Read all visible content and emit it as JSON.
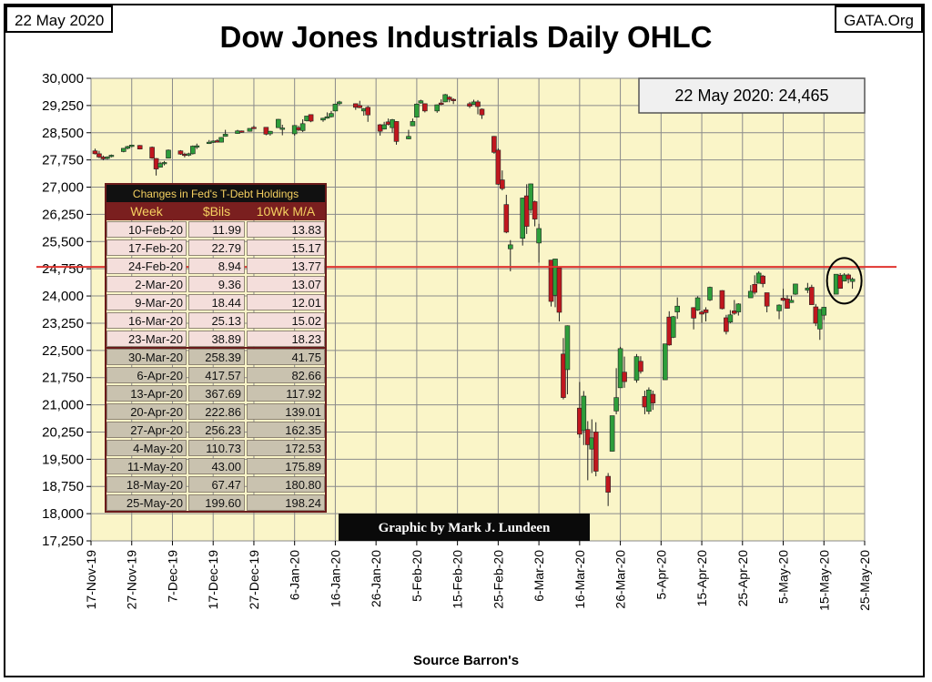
{
  "header": {
    "date_box": "22 May 2020",
    "site_box": "GATA.Org",
    "title": "Dow Jones Industrials Daily OHLC",
    "source": "Source Barron's"
  },
  "chart_data": {
    "type": "candlestick",
    "title": "Dow Jones Industrials Daily OHLC",
    "xlabel": "Source Barron's",
    "ylabel": "",
    "ylim": [
      17250,
      30000
    ],
    "y_ticks": [
      "30,000",
      "29,250",
      "28,500",
      "27,750",
      "27,000",
      "26,250",
      "25,500",
      "24,750",
      "24,000",
      "23,250",
      "22,500",
      "21,750",
      "21,000",
      "20,250",
      "19,500",
      "18,750",
      "18,000",
      "17,250"
    ],
    "x_ticks": [
      "17-Nov-19",
      "27-Nov-19",
      "7-Dec-19",
      "17-Dec-19",
      "27-Dec-19",
      "6-Jan-20",
      "16-Jan-20",
      "26-Jan-20",
      "5-Feb-20",
      "15-Feb-20",
      "25-Feb-20",
      "6-Mar-20",
      "16-Mar-20",
      "26-Mar-20",
      "5-Apr-20",
      "15-Apr-20",
      "25-Apr-20",
      "5-May-20",
      "15-May-20",
      "25-May-20"
    ],
    "x_start": "2019-11-17",
    "x_end": "2020-05-25",
    "grid": true,
    "annotation_label": "22 May 2020: 24,465",
    "reference_line": 24800,
    "credit": "Graphic by Mark J. Lundeen",
    "candles": [
      {
        "d": "2019-11-18",
        "o": 28000,
        "h": 28060,
        "l": 27900,
        "c": 27920
      },
      {
        "d": "2019-11-19",
        "o": 27920,
        "h": 28000,
        "l": 27800,
        "c": 27830
      },
      {
        "d": "2019-11-20",
        "o": 27830,
        "h": 27870,
        "l": 27740,
        "c": 27780
      },
      {
        "d": "2019-11-21",
        "o": 27790,
        "h": 27850,
        "l": 27760,
        "c": 27830
      },
      {
        "d": "2019-11-22",
        "o": 27850,
        "h": 27900,
        "l": 27820,
        "c": 27880
      },
      {
        "d": "2019-11-25",
        "o": 27980,
        "h": 28080,
        "l": 27960,
        "c": 28070
      },
      {
        "d": "2019-11-26",
        "o": 28070,
        "h": 28140,
        "l": 28040,
        "c": 28120
      },
      {
        "d": "2019-11-27",
        "o": 28120,
        "h": 28170,
        "l": 28100,
        "c": 28160
      },
      {
        "d": "2019-11-29",
        "o": 28150,
        "h": 28160,
        "l": 28040,
        "c": 28050
      },
      {
        "d": "2019-12-02",
        "o": 28100,
        "h": 28120,
        "l": 27780,
        "c": 27800
      },
      {
        "d": "2019-12-03",
        "o": 27790,
        "h": 27800,
        "l": 27320,
        "c": 27500
      },
      {
        "d": "2019-12-04",
        "o": 27550,
        "h": 27700,
        "l": 27540,
        "c": 27650
      },
      {
        "d": "2019-12-05",
        "o": 27650,
        "h": 27720,
        "l": 27600,
        "c": 27680
      },
      {
        "d": "2019-12-06",
        "o": 27800,
        "h": 28040,
        "l": 27790,
        "c": 28020
      },
      {
        "d": "2019-12-09",
        "o": 28000,
        "h": 28020,
        "l": 27890,
        "c": 27910
      },
      {
        "d": "2019-12-10",
        "o": 27910,
        "h": 27950,
        "l": 27820,
        "c": 27880
      },
      {
        "d": "2019-12-11",
        "o": 27880,
        "h": 27950,
        "l": 27850,
        "c": 27920
      },
      {
        "d": "2019-12-12",
        "o": 27920,
        "h": 28150,
        "l": 27900,
        "c": 28130
      },
      {
        "d": "2019-12-13",
        "o": 28130,
        "h": 28200,
        "l": 28050,
        "c": 28140
      },
      {
        "d": "2019-12-16",
        "o": 28200,
        "h": 28300,
        "l": 28190,
        "c": 28240
      },
      {
        "d": "2019-12-17",
        "o": 28240,
        "h": 28290,
        "l": 28220,
        "c": 28270
      },
      {
        "d": "2019-12-18",
        "o": 28280,
        "h": 28320,
        "l": 28230,
        "c": 28240
      },
      {
        "d": "2019-12-19",
        "o": 28240,
        "h": 28380,
        "l": 28230,
        "c": 28370
      },
      {
        "d": "2019-12-20",
        "o": 28400,
        "h": 28580,
        "l": 28390,
        "c": 28460
      },
      {
        "d": "2019-12-23",
        "o": 28480,
        "h": 28580,
        "l": 28470,
        "c": 28550
      },
      {
        "d": "2019-12-24",
        "o": 28550,
        "h": 28560,
        "l": 28500,
        "c": 28520
      },
      {
        "d": "2019-12-26",
        "o": 28540,
        "h": 28620,
        "l": 28530,
        "c": 28620
      },
      {
        "d": "2019-12-27",
        "o": 28650,
        "h": 28700,
        "l": 28620,
        "c": 28640
      },
      {
        "d": "2019-12-30",
        "o": 28650,
        "h": 28650,
        "l": 28430,
        "c": 28460
      },
      {
        "d": "2019-12-31",
        "o": 28470,
        "h": 28550,
        "l": 28420,
        "c": 28540
      },
      {
        "d": "2020-01-02",
        "o": 28640,
        "h": 28880,
        "l": 28630,
        "c": 28870
      },
      {
        "d": "2020-01-03",
        "o": 28630,
        "h": 28720,
        "l": 28430,
        "c": 28630
      },
      {
        "d": "2020-01-06",
        "o": 28470,
        "h": 28710,
        "l": 28420,
        "c": 28700
      },
      {
        "d": "2020-01-07",
        "o": 28640,
        "h": 28690,
        "l": 28540,
        "c": 28580
      },
      {
        "d": "2020-01-08",
        "o": 28560,
        "h": 28870,
        "l": 28520,
        "c": 28750
      },
      {
        "d": "2020-01-09",
        "o": 28830,
        "h": 28960,
        "l": 28810,
        "c": 28960
      },
      {
        "d": "2020-01-10",
        "o": 29000,
        "h": 29000,
        "l": 28790,
        "c": 28820
      },
      {
        "d": "2020-01-13",
        "o": 28850,
        "h": 28910,
        "l": 28800,
        "c": 28900
      },
      {
        "d": "2020-01-14",
        "o": 28900,
        "h": 29060,
        "l": 28890,
        "c": 28940
      },
      {
        "d": "2020-01-15",
        "o": 28940,
        "h": 29100,
        "l": 28920,
        "c": 29030
      },
      {
        "d": "2020-01-16",
        "o": 29100,
        "h": 29300,
        "l": 29090,
        "c": 29290
      },
      {
        "d": "2020-01-17",
        "o": 29300,
        "h": 29380,
        "l": 29260,
        "c": 29350
      },
      {
        "d": "2020-01-21",
        "o": 29300,
        "h": 29310,
        "l": 29130,
        "c": 29200
      },
      {
        "d": "2020-01-22",
        "o": 29250,
        "h": 29380,
        "l": 29180,
        "c": 29190
      },
      {
        "d": "2020-01-23",
        "o": 29100,
        "h": 29180,
        "l": 28970,
        "c": 29160
      },
      {
        "d": "2020-01-24",
        "o": 29200,
        "h": 29240,
        "l": 28800,
        "c": 28990
      },
      {
        "d": "2020-01-27",
        "o": 28720,
        "h": 28740,
        "l": 28420,
        "c": 28540
      },
      {
        "d": "2020-01-28",
        "o": 28600,
        "h": 28800,
        "l": 28590,
        "c": 28720
      },
      {
        "d": "2020-01-29",
        "o": 28800,
        "h": 28890,
        "l": 28700,
        "c": 28730
      },
      {
        "d": "2020-01-30",
        "o": 28640,
        "h": 28880,
        "l": 28500,
        "c": 28860
      },
      {
        "d": "2020-01-31",
        "o": 28810,
        "h": 28820,
        "l": 28170,
        "c": 28260
      },
      {
        "d": "2020-02-03",
        "o": 28330,
        "h": 28580,
        "l": 28320,
        "c": 28400
      },
      {
        "d": "2020-02-04",
        "o": 28690,
        "h": 28890,
        "l": 28680,
        "c": 28810
      },
      {
        "d": "2020-02-05",
        "o": 28930,
        "h": 29310,
        "l": 28920,
        "c": 29290
      },
      {
        "d": "2020-02-06",
        "o": 29320,
        "h": 29410,
        "l": 29300,
        "c": 29380
      },
      {
        "d": "2020-02-07",
        "o": 29300,
        "h": 29310,
        "l": 29060,
        "c": 29100
      },
      {
        "d": "2020-02-10",
        "o": 29100,
        "h": 29280,
        "l": 29050,
        "c": 29270
      },
      {
        "d": "2020-02-11",
        "o": 29320,
        "h": 29420,
        "l": 29260,
        "c": 29280
      },
      {
        "d": "2020-02-12",
        "o": 29350,
        "h": 29570,
        "l": 29340,
        "c": 29550
      },
      {
        "d": "2020-02-13",
        "o": 29480,
        "h": 29510,
        "l": 29340,
        "c": 29420
      },
      {
        "d": "2020-02-14",
        "o": 29420,
        "h": 29450,
        "l": 29290,
        "c": 29400
      },
      {
        "d": "2020-02-18",
        "o": 29300,
        "h": 29350,
        "l": 29180,
        "c": 29230
      },
      {
        "d": "2020-02-19",
        "o": 29280,
        "h": 29410,
        "l": 29270,
        "c": 29350
      },
      {
        "d": "2020-02-20",
        "o": 29350,
        "h": 29400,
        "l": 29010,
        "c": 29220
      },
      {
        "d": "2020-02-21",
        "o": 29150,
        "h": 29170,
        "l": 28880,
        "c": 28990
      },
      {
        "d": "2020-02-24",
        "o": 28400,
        "h": 28410,
        "l": 27920,
        "c": 27960
      },
      {
        "d": "2020-02-25",
        "o": 28020,
        "h": 28070,
        "l": 27060,
        "c": 27080
      },
      {
        "d": "2020-02-26",
        "o": 27200,
        "h": 27460,
        "l": 26910,
        "c": 26960
      },
      {
        "d": "2020-02-27",
        "o": 26520,
        "h": 26790,
        "l": 25730,
        "c": 25760
      },
      {
        "d": "2020-02-28",
        "o": 25300,
        "h": 25540,
        "l": 24680,
        "c": 25410
      },
      {
        "d": "2020-03-02",
        "o": 25590,
        "h": 26710,
        "l": 25390,
        "c": 26700
      },
      {
        "d": "2020-03-03",
        "o": 26760,
        "h": 27080,
        "l": 25710,
        "c": 25920
      },
      {
        "d": "2020-03-04",
        "o": 26380,
        "h": 27100,
        "l": 26280,
        "c": 27090
      },
      {
        "d": "2020-03-05",
        "o": 26600,
        "h": 26630,
        "l": 25920,
        "c": 26120
      },
      {
        "d": "2020-03-06",
        "o": 25460,
        "h": 25990,
        "l": 24920,
        "c": 25860
      },
      {
        "d": "2020-03-09",
        "o": 24990,
        "h": 24990,
        "l": 23710,
        "c": 23850
      },
      {
        "d": "2020-03-10",
        "o": 24020,
        "h": 25020,
        "l": 23690,
        "c": 25020
      },
      {
        "d": "2020-03-11",
        "o": 24770,
        "h": 24770,
        "l": 23300,
        "c": 23550
      },
      {
        "d": "2020-03-12",
        "o": 22400,
        "h": 22840,
        "l": 21150,
        "c": 21200
      },
      {
        "d": "2020-03-13",
        "o": 21970,
        "h": 23190,
        "l": 21290,
        "c": 23180
      },
      {
        "d": "2020-03-16",
        "o": 20910,
        "h": 21630,
        "l": 20090,
        "c": 20190
      },
      {
        "d": "2020-03-17",
        "o": 20290,
        "h": 21380,
        "l": 19890,
        "c": 21240
      },
      {
        "d": "2020-03-18",
        "o": 20320,
        "h": 20550,
        "l": 18920,
        "c": 19900
      },
      {
        "d": "2020-03-19",
        "o": 19780,
        "h": 20600,
        "l": 19120,
        "c": 20090
      },
      {
        "d": "2020-03-20",
        "o": 20250,
        "h": 20520,
        "l": 19030,
        "c": 19170
      },
      {
        "d": "2020-03-23",
        "o": 19030,
        "h": 19120,
        "l": 18210,
        "c": 18590
      },
      {
        "d": "2020-03-24",
        "o": 19720,
        "h": 20650,
        "l": 19710,
        "c": 20700
      },
      {
        "d": "2020-03-25",
        "o": 20830,
        "h": 22010,
        "l": 20740,
        "c": 21200
      },
      {
        "d": "2020-03-26",
        "o": 21470,
        "h": 22600,
        "l": 21470,
        "c": 22550
      },
      {
        "d": "2020-03-27",
        "o": 21900,
        "h": 22330,
        "l": 21470,
        "c": 21640
      },
      {
        "d": "2020-03-30",
        "o": 21680,
        "h": 22400,
        "l": 21610,
        "c": 22330
      },
      {
        "d": "2020-03-31",
        "o": 22200,
        "h": 22340,
        "l": 21860,
        "c": 21920
      },
      {
        "d": "2020-04-01",
        "o": 21230,
        "h": 21390,
        "l": 20740,
        "c": 20940
      },
      {
        "d": "2020-04-02",
        "o": 20820,
        "h": 21480,
        "l": 20740,
        "c": 21410
      },
      {
        "d": "2020-04-03",
        "o": 21290,
        "h": 21390,
        "l": 20860,
        "c": 21050
      },
      {
        "d": "2020-04-06",
        "o": 21690,
        "h": 22680,
        "l": 21690,
        "c": 22680
      },
      {
        "d": "2020-04-07",
        "o": 23420,
        "h": 23580,
        "l": 22630,
        "c": 22650
      },
      {
        "d": "2020-04-08",
        "o": 22860,
        "h": 23450,
        "l": 22840,
        "c": 23430
      },
      {
        "d": "2020-04-09",
        "o": 23560,
        "h": 23960,
        "l": 23370,
        "c": 23720
      },
      {
        "d": "2020-04-13",
        "o": 23680,
        "h": 23690,
        "l": 23080,
        "c": 23390
      },
      {
        "d": "2020-04-14",
        "o": 23610,
        "h": 23990,
        "l": 23590,
        "c": 23950
      },
      {
        "d": "2020-04-15",
        "o": 23560,
        "h": 23600,
        "l": 23260,
        "c": 23500
      },
      {
        "d": "2020-04-16",
        "o": 23620,
        "h": 23690,
        "l": 23300,
        "c": 23540
      },
      {
        "d": "2020-04-17",
        "o": 23890,
        "h": 24260,
        "l": 23860,
        "c": 24240
      },
      {
        "d": "2020-04-20",
        "o": 24150,
        "h": 24160,
        "l": 23630,
        "c": 23650
      },
      {
        "d": "2020-04-21",
        "o": 23400,
        "h": 23480,
        "l": 22940,
        "c": 23020
      },
      {
        "d": "2020-04-22",
        "o": 23280,
        "h": 23610,
        "l": 23250,
        "c": 23480
      },
      {
        "d": "2020-04-23",
        "o": 23590,
        "h": 23890,
        "l": 23480,
        "c": 23520
      },
      {
        "d": "2020-04-24",
        "o": 23560,
        "h": 23800,
        "l": 23460,
        "c": 23780
      },
      {
        "d": "2020-04-27",
        "o": 23950,
        "h": 24300,
        "l": 23950,
        "c": 24130
      },
      {
        "d": "2020-04-28",
        "o": 24320,
        "h": 24570,
        "l": 24040,
        "c": 24100
      },
      {
        "d": "2020-04-29",
        "o": 24350,
        "h": 24680,
        "l": 24350,
        "c": 24630
      },
      {
        "d": "2020-04-30",
        "o": 24550,
        "h": 24580,
        "l": 24240,
        "c": 24340
      },
      {
        "d": "2020-05-01",
        "o": 24090,
        "h": 24090,
        "l": 23550,
        "c": 23720
      },
      {
        "d": "2020-05-04",
        "o": 23590,
        "h": 23770,
        "l": 23360,
        "c": 23750
      },
      {
        "d": "2020-05-05",
        "o": 23940,
        "h": 24200,
        "l": 23860,
        "c": 23880
      },
      {
        "d": "2020-05-06",
        "o": 23920,
        "h": 24020,
        "l": 23650,
        "c": 23660
      },
      {
        "d": "2020-05-07",
        "o": 23820,
        "h": 24010,
        "l": 23810,
        "c": 23880
      },
      {
        "d": "2020-05-08",
        "o": 24050,
        "h": 24330,
        "l": 24030,
        "c": 24330
      },
      {
        "d": "2020-05-11",
        "o": 24160,
        "h": 24360,
        "l": 24080,
        "c": 24220
      },
      {
        "d": "2020-05-12",
        "o": 24240,
        "h": 24310,
        "l": 23760,
        "c": 23760
      },
      {
        "d": "2020-05-13",
        "o": 23700,
        "h": 23780,
        "l": 23170,
        "c": 23250
      },
      {
        "d": "2020-05-14",
        "o": 23090,
        "h": 23630,
        "l": 22790,
        "c": 23630
      },
      {
        "d": "2020-05-15",
        "o": 23470,
        "h": 23700,
        "l": 23340,
        "c": 23690
      },
      {
        "d": "2020-05-18",
        "o": 24050,
        "h": 24600,
        "l": 24050,
        "c": 24600
      },
      {
        "d": "2020-05-19",
        "o": 24570,
        "h": 24630,
        "l": 24200,
        "c": 24210
      },
      {
        "d": "2020-05-20",
        "o": 24410,
        "h": 24630,
        "l": 24400,
        "c": 24580
      },
      {
        "d": "2020-05-21",
        "o": 24580,
        "h": 24620,
        "l": 24350,
        "c": 24470
      },
      {
        "d": "2020-05-22",
        "o": 24400,
        "h": 24510,
        "l": 24200,
        "c": 24465
      }
    ],
    "table": {
      "title": "Changes in Fed's T-Debt Holdings",
      "columns": [
        "Week",
        "$Bils",
        "10Wk M/A"
      ],
      "rows": [
        [
          "10-Feb-20",
          "11.99",
          "13.83"
        ],
        [
          "17-Feb-20",
          "22.79",
          "15.17"
        ],
        [
          "24-Feb-20",
          "8.94",
          "13.77"
        ],
        [
          "2-Mar-20",
          "9.36",
          "13.07"
        ],
        [
          "9-Mar-20",
          "18.44",
          "12.01"
        ],
        [
          "16-Mar-20",
          "25.13",
          "15.02"
        ],
        [
          "23-Mar-20",
          "38.89",
          "18.23"
        ],
        [
          "30-Mar-20",
          "258.39",
          "41.75"
        ],
        [
          "6-Apr-20",
          "417.57",
          "82.66"
        ],
        [
          "13-Apr-20",
          "367.69",
          "117.92"
        ],
        [
          "20-Apr-20",
          "222.86",
          "139.01"
        ],
        [
          "27-Apr-20",
          "256.23",
          "162.35"
        ],
        [
          "4-May-20",
          "110.73",
          "172.53"
        ],
        [
          "11-May-20",
          "43.00",
          "175.89"
        ],
        [
          "18-May-20",
          "67.47",
          "180.80"
        ],
        [
          "25-May-20",
          "199.60",
          "198.24"
        ]
      ]
    },
    "colors": {
      "plot_bg": "#FAF5C8",
      "grid": "#8a8a8a",
      "up": "#2E9E3A",
      "down": "#C0171E",
      "reference_line": "#E0342F",
      "table_header_bg": "#7A1F1F",
      "table_header_text": "#F5D060",
      "table_light_row": "#F4DEDB",
      "table_dark_row": "#C9C2AF"
    }
  }
}
